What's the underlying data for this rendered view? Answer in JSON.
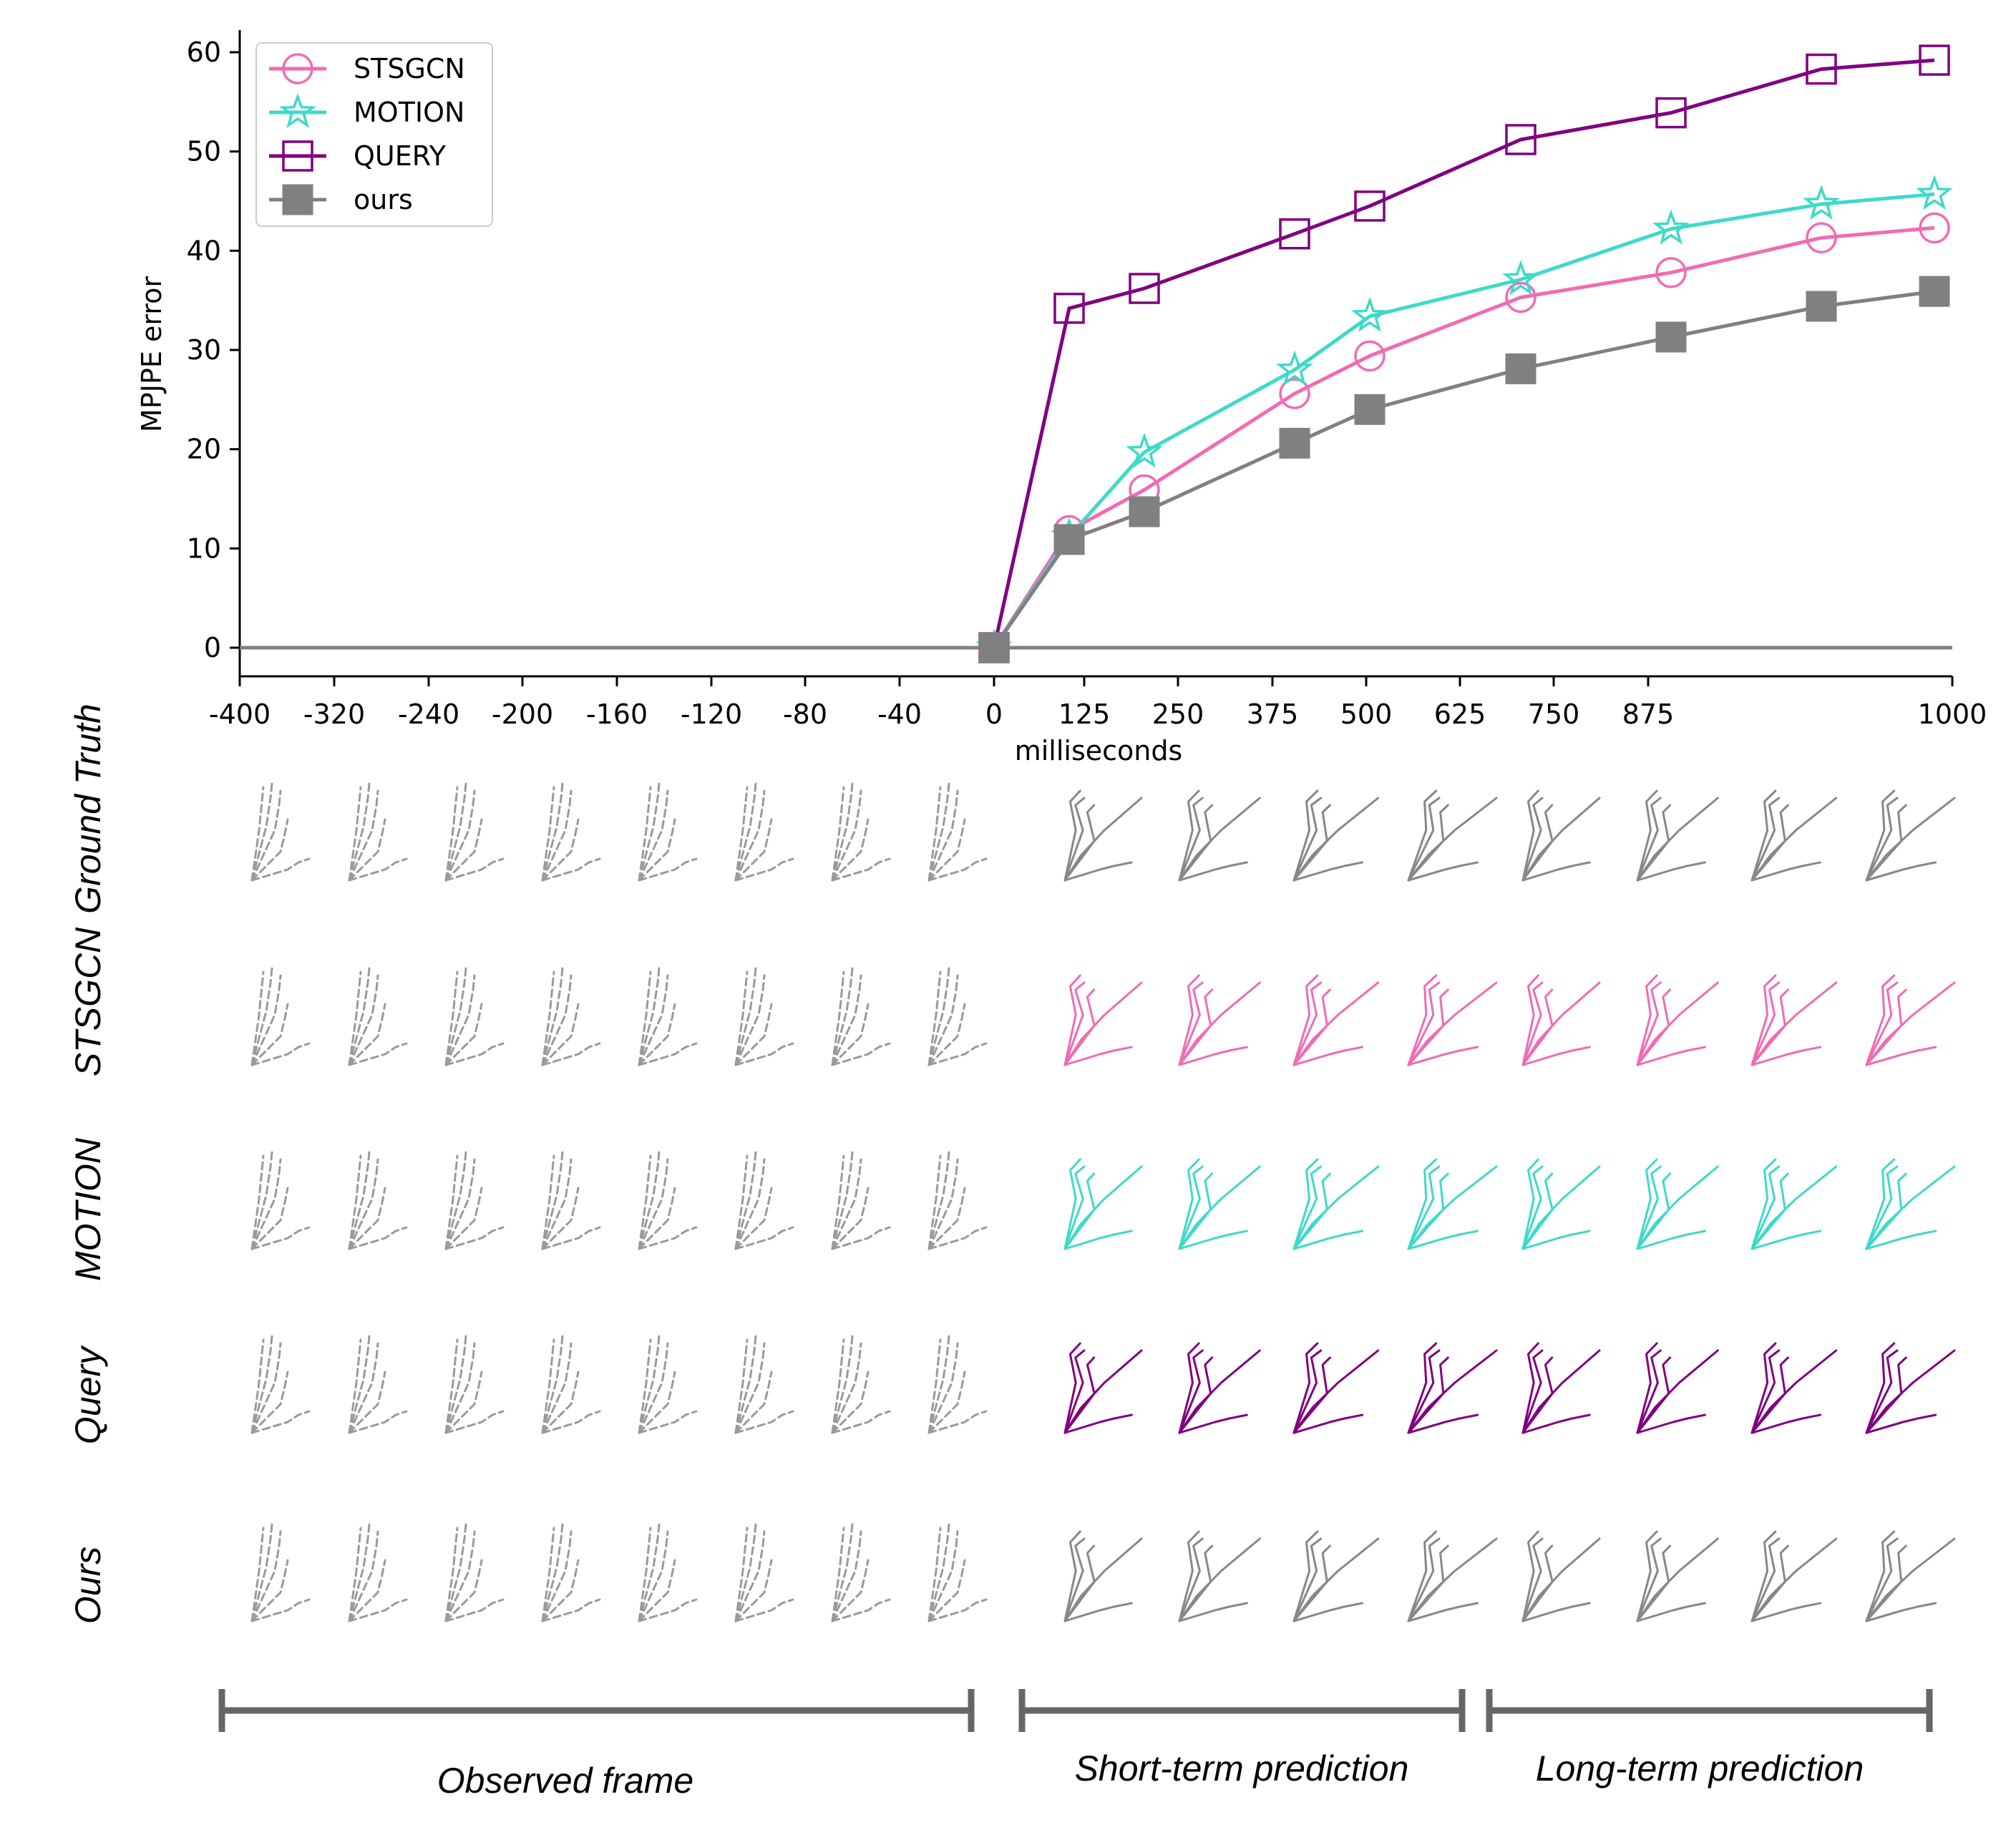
{
  "chart_data": {
    "type": "line",
    "title": "",
    "xlabel": "milliseconds",
    "ylabel": "MPJPE error",
    "x_tick_labels": [
      "-400",
      "-320",
      "-240",
      "-200",
      "-160",
      "-120",
      "-80",
      "-40",
      "0",
      "125",
      "250",
      "375",
      "500",
      "625",
      "750",
      "875",
      "1000"
    ],
    "y_ticks": [
      0,
      10,
      20,
      30,
      40,
      50,
      60
    ],
    "ylim": [
      0,
      62
    ],
    "legend_position": "top-left",
    "grid": false,
    "x": [
      0,
      80,
      160,
      320,
      400,
      560,
      720,
      880,
      1000
    ],
    "series": [
      {
        "name": "STSGCN",
        "color": "#f06bb4",
        "marker": "circle-open",
        "values": [
          0,
          11.8,
          15.9,
          25.6,
          29.4,
          35.3,
          37.8,
          41.3,
          42.3
        ]
      },
      {
        "name": "MOTION",
        "color": "#3fd9c9",
        "marker": "star-open",
        "values": [
          0,
          11.2,
          19.7,
          28.0,
          33.4,
          37.1,
          42.2,
          44.7,
          45.7
        ]
      },
      {
        "name": "QUERY",
        "color": "#800080",
        "marker": "square-open",
        "values": [
          0,
          34.2,
          36.2,
          41.7,
          44.5,
          51.2,
          53.9,
          58.3,
          59.2
        ]
      },
      {
        "name": "ours",
        "color": "#808080",
        "marker": "square-filled",
        "values": [
          0,
          10.9,
          13.7,
          20.6,
          24.0,
          28.1,
          31.3,
          34.4,
          35.9
        ]
      }
    ],
    "baseline": {
      "value": 0,
      "color": "#808080"
    }
  },
  "panel": {
    "rows": [
      {
        "label": "Ground Truth",
        "color": "#888888"
      },
      {
        "label": "STSGCN",
        "color": "#f06bb4"
      },
      {
        "label": "MOTION",
        "color": "#3fd9c9"
      },
      {
        "label": "Query",
        "color": "#800080"
      },
      {
        "label": "Ours",
        "color": "#888888"
      }
    ],
    "observed_color": "#9a9a9a",
    "observed_frames": 8,
    "predicted_frames": 8,
    "brackets": [
      {
        "label": "Observed frame"
      },
      {
        "label": "Short-term prediction"
      },
      {
        "label": "Long-term prediction"
      }
    ],
    "bracket_color": "#666666"
  }
}
